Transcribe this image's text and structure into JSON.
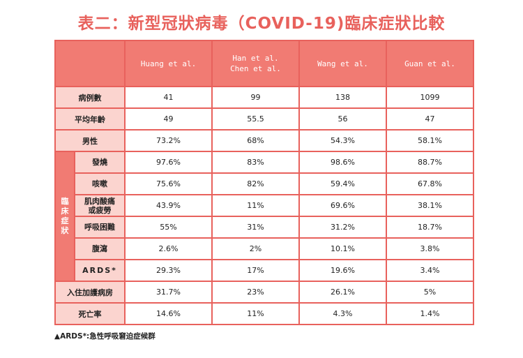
{
  "title": "表二：新型冠狀病毒（COVID-19)臨床症狀比較",
  "headers": [
    "Huang et al.",
    "Han et al.\nChen et al.",
    "Wang et al.",
    "Guan et al."
  ],
  "header_lines": {
    "h0": "Huang et al.",
    "h1a": "Han et al.",
    "h1b": "Chen et al.",
    "h2": "Wang et al.",
    "h3": "Guan et al."
  },
  "rows": {
    "cases": {
      "label": "病例數",
      "values": [
        "41",
        "99",
        "138",
        "1099"
      ]
    },
    "age": {
      "label": "平均年齡",
      "values": [
        "49",
        "55.5",
        "56",
        "47"
      ]
    },
    "male": {
      "label": "男性",
      "values": [
        "73.2%",
        "68%",
        "54.3%",
        "58.1%"
      ]
    },
    "icu": {
      "label": "入住加護病房",
      "values": [
        "31.7%",
        "23%",
        "26.1%",
        "5%"
      ]
    },
    "death": {
      "label": "死亡率",
      "values": [
        "14.6%",
        "11%",
        "4.3%",
        "1.4%"
      ]
    }
  },
  "clinical": {
    "group_label": "臨床症狀",
    "items": [
      {
        "label": "發燒",
        "values": [
          "97.6%",
          "83%",
          "98.6%",
          "88.7%"
        ]
      },
      {
        "label": "咳嗽",
        "values": [
          "75.6%",
          "82%",
          "59.4%",
          "67.8%"
        ]
      },
      {
        "label": "肌肉酸痛\n或疲勞",
        "line1": "肌肉酸痛",
        "line2": "或疲勞",
        "values": [
          "43.9%",
          "11%",
          "69.6%",
          "38.1%"
        ]
      },
      {
        "label": "呼吸困難",
        "values": [
          "55%",
          "31%",
          "31.2%",
          "18.7%"
        ]
      },
      {
        "label": "腹瀉",
        "values": [
          "2.6%",
          "2%",
          "10.1%",
          "3.8%"
        ]
      },
      {
        "label": "ARDS*",
        "values": [
          "29.3%",
          "17%",
          "19.6%",
          "3.4%"
        ]
      }
    ]
  },
  "footnote": "▲ARDS*:急性呼吸窘迫症候群",
  "colors": {
    "accent": "#e8615c",
    "header_bg": "#f17b73",
    "label_bg": "#fbd4cf"
  }
}
